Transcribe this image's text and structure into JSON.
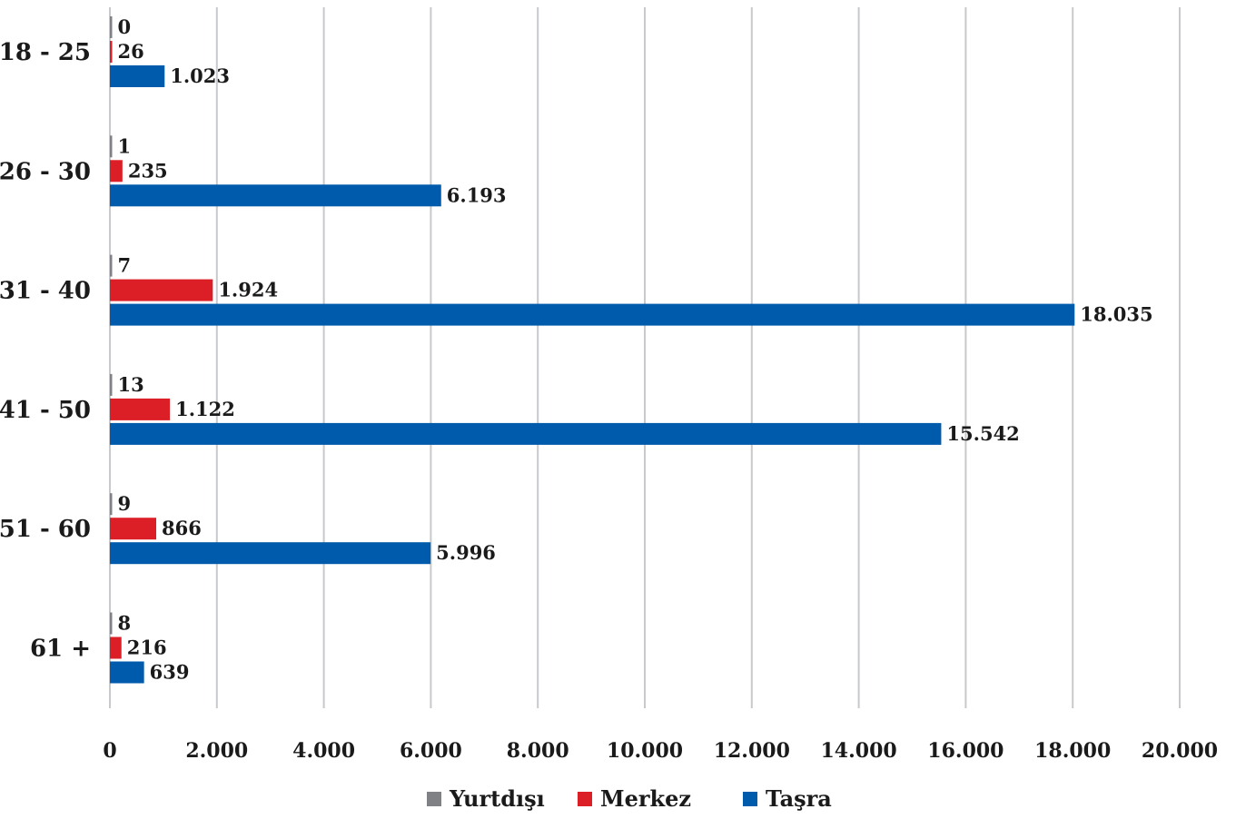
{
  "chart_data": {
    "type": "bar",
    "orientation": "horizontal",
    "categories": [
      "18 - 25",
      "26 - 30",
      "31 - 40",
      "41 - 50",
      "51 - 60",
      "61 +"
    ],
    "series": [
      {
        "name": "Yurtdışı",
        "color": "#7f8185",
        "values": [
          0,
          1,
          7,
          13,
          9,
          8
        ],
        "labels": [
          "0",
          "1",
          "7",
          "13",
          "9",
          "8"
        ]
      },
      {
        "name": "Merkez",
        "color": "#dc1f26",
        "values": [
          26,
          235,
          1924,
          1122,
          866,
          216
        ],
        "labels": [
          "26",
          "235",
          "1.924",
          "1.122",
          "866",
          "216"
        ]
      },
      {
        "name": "Taşra",
        "color": "#005bac",
        "values": [
          1023,
          6193,
          18035,
          15542,
          5996,
          639
        ],
        "labels": [
          "1.023",
          "6.193",
          "18.035",
          "15.542",
          "5.996",
          "639"
        ]
      }
    ],
    "xlim": [
      0,
      20000
    ],
    "xticks": [
      0,
      2000,
      4000,
      6000,
      8000,
      10000,
      12000,
      14000,
      16000,
      18000,
      20000
    ],
    "xtick_labels": [
      "0",
      "2.000",
      "4.000",
      "6.000",
      "8.000",
      "10.000",
      "12.000",
      "14.000",
      "16.000",
      "18.000",
      "20.000"
    ],
    "grid": true,
    "legend_position": "bottom"
  }
}
